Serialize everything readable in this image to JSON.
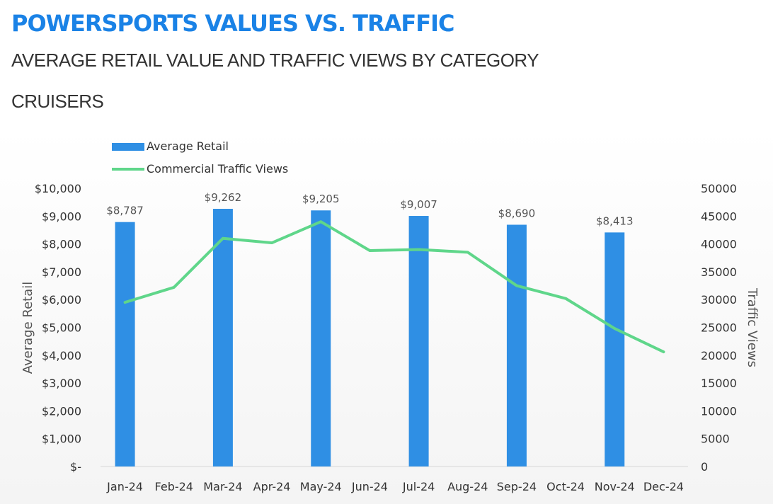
{
  "header": {
    "title": "POWERSPORTS VALUES VS. TRAFFIC",
    "subtitle": "AVERAGE RETAIL VALUE AND TRAFFIC VIEWS BY CATEGORY",
    "category": "CRUISERS"
  },
  "colors": {
    "title": "#1a82e6",
    "bar": "#2f8fe4",
    "line": "#5fd68a"
  },
  "chart_data": {
    "type": "bar",
    "title": "",
    "categories": [
      "Jan-24",
      "Feb-24",
      "Mar-24",
      "Apr-24",
      "May-24",
      "Jun-24",
      "Jul-24",
      "Aug-24",
      "Sep-24",
      "Oct-24",
      "Nov-24",
      "Dec-24"
    ],
    "series": [
      {
        "name": "Average Retail",
        "type": "bar",
        "axis": "left",
        "values": [
          8787,
          null,
          9262,
          null,
          9205,
          null,
          9007,
          null,
          8690,
          null,
          8413,
          null
        ],
        "labels": [
          "$8,787",
          null,
          "$9,262",
          null,
          "$9,205",
          null,
          "$9,007",
          null,
          "$8,690",
          null,
          "$8,413",
          null
        ]
      },
      {
        "name": "Commercial Traffic Views",
        "type": "line",
        "axis": "right",
        "values": [
          29500,
          32200,
          41000,
          40200,
          44000,
          38800,
          39000,
          38500,
          32500,
          30200,
          24800,
          20600
        ]
      }
    ],
    "y_left": {
      "label": "Average Retail",
      "range": [
        0,
        10000
      ],
      "ticks": [
        0,
        1000,
        2000,
        3000,
        4000,
        5000,
        6000,
        7000,
        8000,
        9000,
        10000
      ],
      "tick_labels": [
        "$-",
        "$1,000",
        "$2,000",
        "$3,000",
        "$4,000",
        "$5,000",
        "$6,000",
        "$7,000",
        "$8,000",
        "$9,000",
        "$10,000"
      ]
    },
    "y_right": {
      "label": "Traffic Views",
      "range": [
        0,
        50000
      ],
      "ticks": [
        0,
        5000,
        10000,
        15000,
        20000,
        25000,
        30000,
        35000,
        40000,
        45000,
        50000
      ],
      "tick_labels": [
        "0",
        "5000",
        "10000",
        "15000",
        "20000",
        "25000",
        "30000",
        "35000",
        "40000",
        "45000",
        "50000"
      ]
    },
    "legend": {
      "position": "top-left",
      "items": [
        "Average Retail",
        "Commercial Traffic Views"
      ]
    },
    "grid": false
  }
}
